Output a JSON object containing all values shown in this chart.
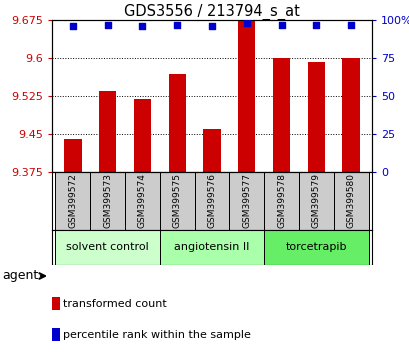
{
  "title": "GDS3556 / 213794_s_at",
  "samples": [
    "GSM399572",
    "GSM399573",
    "GSM399574",
    "GSM399575",
    "GSM399576",
    "GSM399577",
    "GSM399578",
    "GSM399579",
    "GSM399580"
  ],
  "bar_values": [
    9.44,
    9.535,
    9.52,
    9.568,
    9.46,
    9.675,
    9.6,
    9.592,
    9.6
  ],
  "percentile_values": [
    96,
    97,
    96,
    97,
    96,
    98,
    97,
    97,
    97
  ],
  "bar_color": "#cc0000",
  "percentile_color": "#0000cc",
  "ymin": 9.375,
  "ymax": 9.675,
  "yticks": [
    9.375,
    9.45,
    9.525,
    9.6,
    9.675
  ],
  "ytick_labels": [
    "9.375",
    "9.45",
    "9.525",
    "9.6",
    "9.675"
  ],
  "right_yticks": [
    0,
    25,
    50,
    75,
    100
  ],
  "right_ytick_labels": [
    "0",
    "25",
    "50",
    "75",
    "100%"
  ],
  "groups": [
    {
      "label": "solvent control",
      "start": 0,
      "end": 3,
      "color": "#ccffcc"
    },
    {
      "label": "angiotensin II",
      "start": 3,
      "end": 6,
      "color": "#aaffaa"
    },
    {
      "label": "torcetrapib",
      "start": 6,
      "end": 9,
      "color": "#66ee66"
    }
  ],
  "agent_label": "agent",
  "legend_items": [
    {
      "label": "transformed count",
      "color": "#cc0000"
    },
    {
      "label": "percentile rank within the sample",
      "color": "#0000cc"
    }
  ],
  "sample_box_color": "#cccccc",
  "background_color": "#ffffff",
  "plot_bg_color": "#ffffff",
  "tick_label_color_left": "#cc0000",
  "tick_label_color_right": "#0000cc",
  "figsize": [
    4.1,
    3.54
  ],
  "dpi": 100
}
